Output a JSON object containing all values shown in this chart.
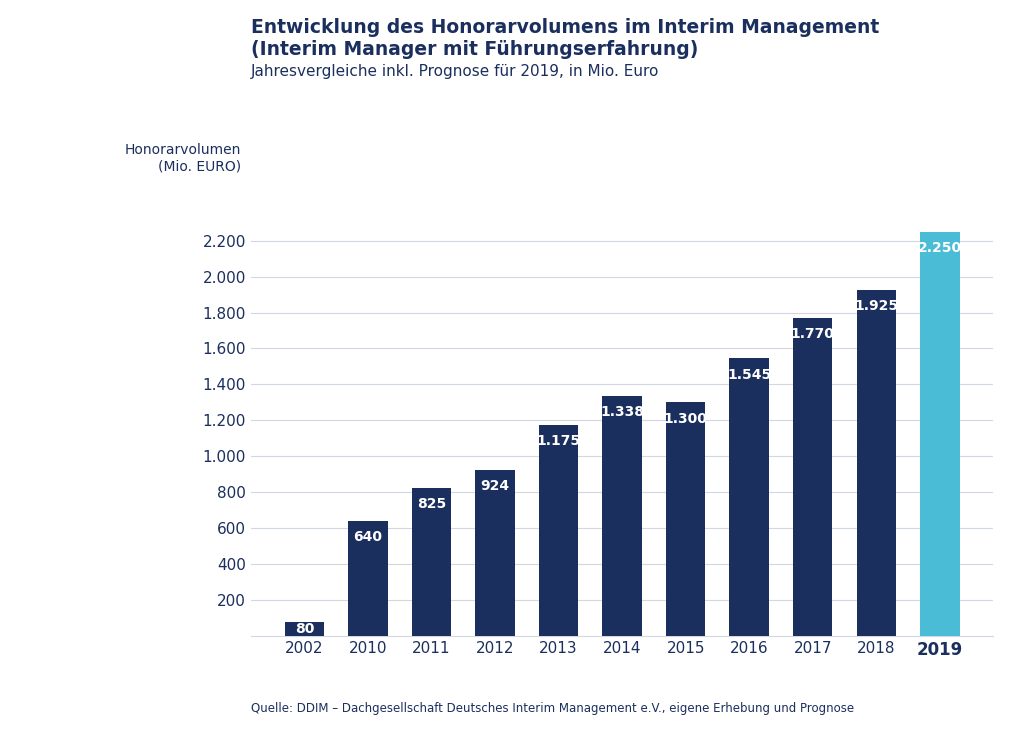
{
  "title_line1": "Entwicklung des Honorarvolumens im Interim Management",
  "title_line2": "(Interim Manager mit Führungserfahrung)",
  "subtitle": "Jahresvergleiche inkl. Prognose für 2019, in Mio. Euro",
  "ylabel_line1": "Honorarvolumen",
  "ylabel_line2": "(Mio. EURO)",
  "source": "Quelle: DDIM – Dachgesellschaft Deutsches Interim Management e.V., eigene Erhebung und Prognose",
  "categories": [
    "2002",
    "2010",
    "2011",
    "2012",
    "2013",
    "2014",
    "2015",
    "2016",
    "2017",
    "2018",
    "2019"
  ],
  "values": [
    80,
    640,
    825,
    924,
    1175,
    1338,
    1300,
    1545,
    1770,
    1925,
    2250
  ],
  "bar_colors": [
    "#1b2f5e",
    "#1b2f5e",
    "#1b2f5e",
    "#1b2f5e",
    "#1b2f5e",
    "#1b2f5e",
    "#1b2f5e",
    "#1b2f5e",
    "#1b2f5e",
    "#1b2f5e",
    "#4bbcd6"
  ],
  "label_colors": [
    "#ffffff",
    "#ffffff",
    "#ffffff",
    "#ffffff",
    "#ffffff",
    "#ffffff",
    "#ffffff",
    "#ffffff",
    "#ffffff",
    "#ffffff",
    "#ffffff"
  ],
  "yticks": [
    200,
    400,
    600,
    800,
    1000,
    1200,
    1400,
    1600,
    1800,
    2000,
    2200
  ],
  "ylim": [
    0,
    2400
  ],
  "title_color": "#1b2f5e",
  "subtitle_color": "#1b2f5e",
  "ylabel_color": "#1b2f5e",
  "tick_color": "#1b2f5e",
  "source_color": "#1b2f5e",
  "background_color": "#ffffff",
  "grid_color": "#d0d8e4",
  "bar_width": 0.62
}
